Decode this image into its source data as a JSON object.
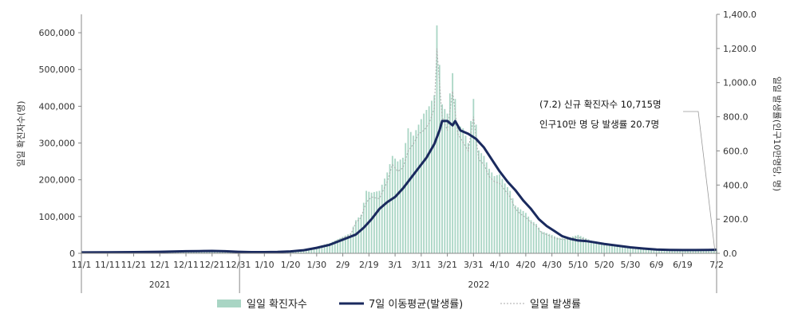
{
  "chart_data": {
    "type": "bar",
    "y_left": {
      "label": "일일 확진자수(명)",
      "ylim": [
        0,
        650000
      ],
      "ticks": [
        0,
        100000,
        200000,
        300000,
        400000,
        500000,
        600000
      ],
      "tick_labels": [
        "0",
        "100,000",
        "200,000",
        "300,000",
        "400,000",
        "500,000",
        "600,000"
      ]
    },
    "y_right": {
      "label": "일일 발생률(인구10만명당, 명)",
      "ylim": [
        0,
        1400
      ],
      "ticks": [
        0,
        200,
        400,
        600,
        800,
        1000,
        1200,
        1400
      ],
      "tick_labels": [
        "0.0",
        "200.0",
        "400.0",
        "600.0",
        "800.0",
        "1,000.0",
        "1,200.0",
        "1,400.0"
      ]
    },
    "x_ticks": [
      "11/1",
      "11/11",
      "11/21",
      "12/1",
      "12/11",
      "12/21",
      "12/31",
      "1/10",
      "1/20",
      "1/30",
      "2/9",
      "2/19",
      "3/1",
      "3/11",
      "3/21",
      "3/31",
      "4/10",
      "4/20",
      "4/30",
      "5/10",
      "5/20",
      "5/30",
      "6/9",
      "6/19",
      "7/2"
    ],
    "x_tick_days": [
      0,
      10,
      20,
      30,
      40,
      50,
      60,
      70,
      80,
      90,
      100,
      110,
      120,
      130,
      140,
      150,
      160,
      170,
      180,
      190,
      200,
      210,
      220,
      230,
      243
    ],
    "years": [
      {
        "label": "2021",
        "start_day": 0,
        "end_day": 60
      },
      {
        "label": "2022",
        "start_day": 61,
        "end_day": 243
      }
    ],
    "legend": [
      "일일 확진자수",
      "7일 이동평균(발생률)",
      "일일 발생률"
    ],
    "legend_position": "bottom",
    "annotation": {
      "line1": "(7.2) 신규 확진자수 10,715명",
      "line2": "인구10만 명 당 발생률 20.7명"
    },
    "colors": {
      "bars": "#a9d5c4",
      "moving_average": "#1a2a5e",
      "daily_rate": "#a9a9a9"
    },
    "series": [
      {
        "name": "일일 확진자수",
        "axis": "left",
        "type": "bar",
        "points": [
          [
            0,
            1700
          ],
          [
            10,
            2500
          ],
          [
            20,
            3200
          ],
          [
            30,
            4500
          ],
          [
            40,
            7000
          ],
          [
            50,
            6500
          ],
          [
            55,
            5000
          ],
          [
            60,
            4500
          ],
          [
            65,
            3500
          ],
          [
            70,
            3500
          ],
          [
            75,
            3800
          ],
          [
            80,
            6000
          ],
          [
            85,
            10000
          ],
          [
            90,
            18000
          ],
          [
            95,
            28000
          ],
          [
            100,
            45000
          ],
          [
            103,
            55000
          ],
          [
            105,
            90000
          ],
          [
            107,
            105000
          ],
          [
            109,
            170000
          ],
          [
            111,
            165000
          ],
          [
            114,
            170000
          ],
          [
            117,
            220000
          ],
          [
            119,
            265000
          ],
          [
            121,
            250000
          ],
          [
            123,
            260000
          ],
          [
            125,
            340000
          ],
          [
            127,
            320000
          ],
          [
            129,
            350000
          ],
          [
            131,
            380000
          ],
          [
            133,
            400000
          ],
          [
            135,
            430000
          ],
          [
            136,
            620000
          ],
          [
            138,
            405000
          ],
          [
            140,
            380000
          ],
          [
            142,
            490000
          ],
          [
            144,
            350000
          ],
          [
            146,
            340000
          ],
          [
            148,
            300000
          ],
          [
            150,
            420000
          ],
          [
            152,
            280000
          ],
          [
            154,
            265000
          ],
          [
            156,
            230000
          ],
          [
            158,
            210000
          ],
          [
            160,
            215000
          ],
          [
            162,
            190000
          ],
          [
            164,
            170000
          ],
          [
            166,
            130000
          ],
          [
            168,
            120000
          ],
          [
            170,
            110000
          ],
          [
            172,
            90000
          ],
          [
            174,
            80000
          ],
          [
            176,
            60000
          ],
          [
            178,
            55000
          ],
          [
            180,
            50000
          ],
          [
            182,
            43000
          ],
          [
            185,
            40000
          ],
          [
            190,
            50000
          ],
          [
            195,
            35000
          ],
          [
            200,
            28000
          ],
          [
            205,
            22000
          ],
          [
            210,
            17000
          ],
          [
            215,
            12000
          ],
          [
            220,
            9000
          ],
          [
            225,
            8000
          ],
          [
            230,
            7500
          ],
          [
            235,
            9000
          ],
          [
            240,
            10000
          ],
          [
            243,
            10700
          ]
        ]
      },
      {
        "name": "7일 이동평균(발생률)",
        "axis": "right",
        "type": "line",
        "points": [
          [
            0,
            5
          ],
          [
            10,
            6
          ],
          [
            20,
            7
          ],
          [
            30,
            9
          ],
          [
            40,
            12
          ],
          [
            45,
            13
          ],
          [
            50,
            14
          ],
          [
            55,
            12
          ],
          [
            60,
            9
          ],
          [
            65,
            7
          ],
          [
            70,
            7
          ],
          [
            75,
            8
          ],
          [
            80,
            11
          ],
          [
            85,
            18
          ],
          [
            90,
            32
          ],
          [
            95,
            50
          ],
          [
            100,
            80
          ],
          [
            105,
            110
          ],
          [
            108,
            150
          ],
          [
            111,
            200
          ],
          [
            114,
            260
          ],
          [
            117,
            300
          ],
          [
            120,
            330
          ],
          [
            123,
            380
          ],
          [
            126,
            440
          ],
          [
            129,
            500
          ],
          [
            132,
            560
          ],
          [
            135,
            640
          ],
          [
            137,
            720
          ],
          [
            138,
            775
          ],
          [
            140,
            775
          ],
          [
            142,
            750
          ],
          [
            143,
            775
          ],
          [
            145,
            720
          ],
          [
            148,
            700
          ],
          [
            151,
            670
          ],
          [
            154,
            620
          ],
          [
            157,
            550
          ],
          [
            160,
            480
          ],
          [
            163,
            420
          ],
          [
            166,
            370
          ],
          [
            169,
            310
          ],
          [
            172,
            260
          ],
          [
            175,
            200
          ],
          [
            178,
            160
          ],
          [
            181,
            130
          ],
          [
            184,
            100
          ],
          [
            187,
            85
          ],
          [
            190,
            75
          ],
          [
            193,
            72
          ],
          [
            196,
            65
          ],
          [
            200,
            55
          ],
          [
            205,
            45
          ],
          [
            210,
            35
          ],
          [
            215,
            28
          ],
          [
            220,
            22
          ],
          [
            225,
            20
          ],
          [
            230,
            19
          ],
          [
            235,
            19
          ],
          [
            240,
            20
          ],
          [
            243,
            21
          ]
        ]
      },
      {
        "name": "일일 발생률",
        "axis": "right",
        "type": "line",
        "points": [
          [
            0,
            4
          ],
          [
            10,
            5
          ],
          [
            20,
            6
          ],
          [
            30,
            9
          ],
          [
            40,
            13
          ],
          [
            50,
            13
          ],
          [
            55,
            10
          ],
          [
            60,
            9
          ],
          [
            65,
            7
          ],
          [
            70,
            7
          ],
          [
            75,
            8
          ],
          [
            80,
            12
          ],
          [
            85,
            20
          ],
          [
            90,
            35
          ],
          [
            95,
            55
          ],
          [
            100,
            90
          ],
          [
            103,
            110
          ],
          [
            105,
            180
          ],
          [
            107,
            210
          ],
          [
            109,
            300
          ],
          [
            111,
            330
          ],
          [
            114,
            320
          ],
          [
            117,
            420
          ],
          [
            119,
            520
          ],
          [
            121,
            480
          ],
          [
            123,
            500
          ],
          [
            125,
            600
          ],
          [
            127,
            640
          ],
          [
            129,
            700
          ],
          [
            131,
            720
          ],
          [
            133,
            760
          ],
          [
            135,
            850
          ],
          [
            136,
            1200
          ],
          [
            138,
            800
          ],
          [
            140,
            720
          ],
          [
            142,
            950
          ],
          [
            144,
            700
          ],
          [
            146,
            650
          ],
          [
            148,
            600
          ],
          [
            150,
            800
          ],
          [
            152,
            550
          ],
          [
            154,
            520
          ],
          [
            156,
            450
          ],
          [
            158,
            420
          ],
          [
            160,
            410
          ],
          [
            162,
            370
          ],
          [
            164,
            330
          ],
          [
            166,
            260
          ],
          [
            168,
            230
          ],
          [
            170,
            210
          ],
          [
            172,
            180
          ],
          [
            174,
            160
          ],
          [
            176,
            120
          ],
          [
            178,
            110
          ],
          [
            180,
            95
          ],
          [
            182,
            85
          ],
          [
            185,
            80
          ],
          [
            190,
            95
          ],
          [
            195,
            70
          ],
          [
            200,
            55
          ],
          [
            205,
            45
          ],
          [
            210,
            35
          ],
          [
            215,
            25
          ],
          [
            220,
            18
          ],
          [
            225,
            16
          ],
          [
            230,
            15
          ],
          [
            235,
            18
          ],
          [
            240,
            20
          ],
          [
            243,
            20.7
          ]
        ]
      }
    ]
  }
}
